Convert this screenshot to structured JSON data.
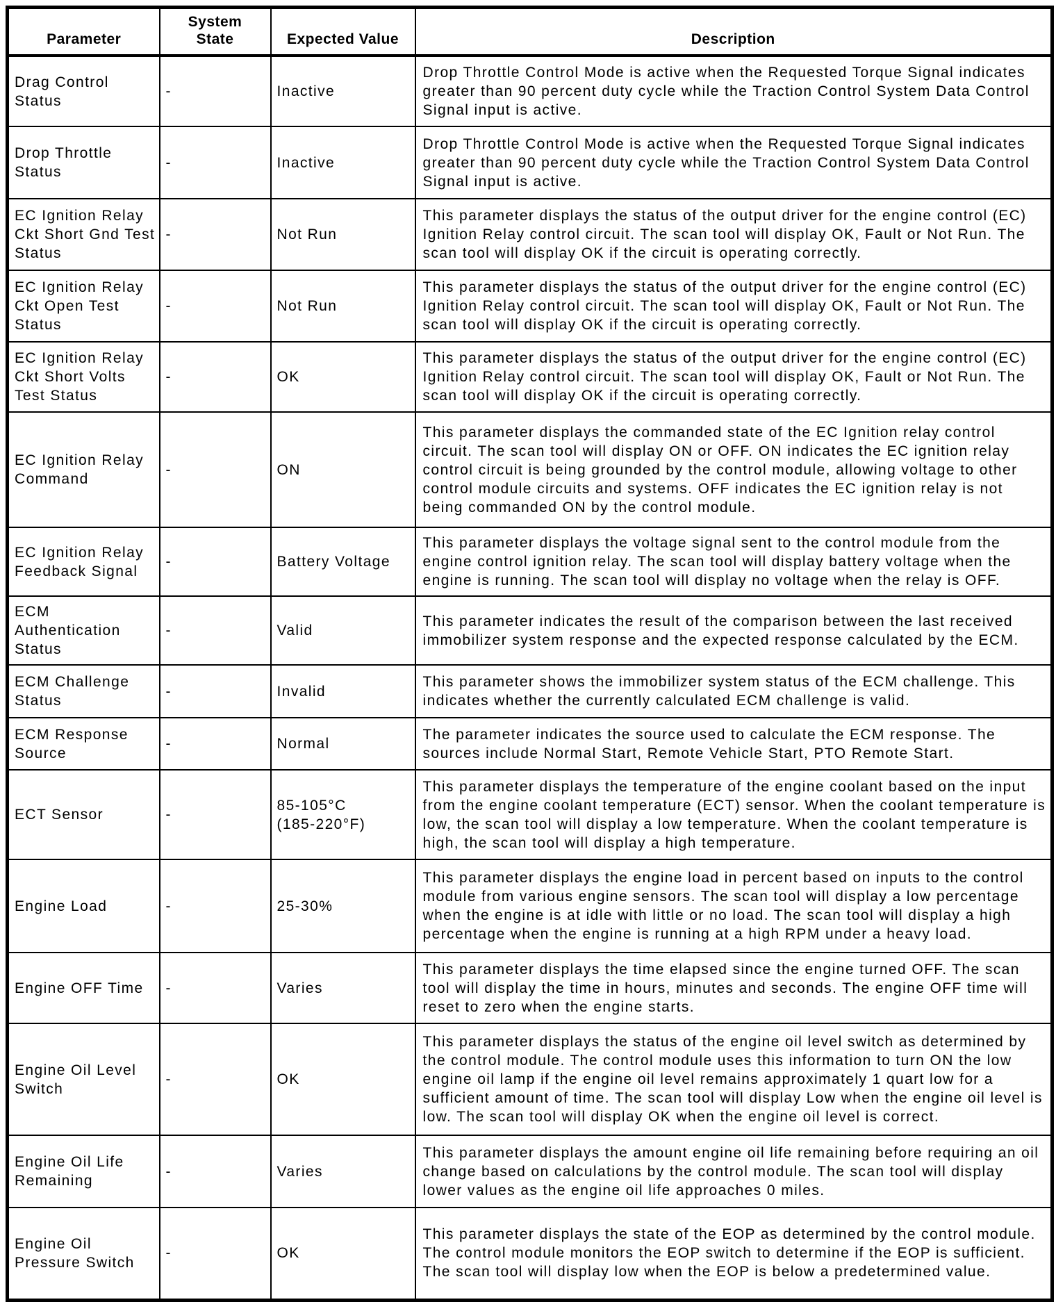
{
  "table": {
    "headers": {
      "parameter": "Parameter",
      "system_state": "System\nState",
      "expected_value": "Expected Value",
      "description": "Description"
    },
    "rows": [
      {
        "parameter": "Drag Control Status",
        "system_state": "-",
        "expected_value": "Inactive",
        "description": "Drop Throttle Control Mode is active when the Requested Torque Signal indicates greater than 90 percent duty cycle while the Traction Control System Data Control Signal input is active."
      },
      {
        "parameter": "Drop Throttle Status",
        "system_state": "-",
        "expected_value": "Inactive",
        "description": "Drop Throttle Control Mode is active when the Requested Torque Signal indicates greater than 90 percent duty cycle while the Traction Control System Data Control Signal input is active."
      },
      {
        "parameter": "EC Ignition Relay Ckt Short Gnd Test Status",
        "system_state": "-",
        "expected_value": "Not Run",
        "description": "This parameter displays the status of the output driver for the engine control (EC) Ignition Relay control circuit. The scan tool will display OK, Fault or Not Run. The scan tool will display OK if the circuit is operating correctly."
      },
      {
        "parameter": "EC Ignition Relay Ckt Open Test Status",
        "system_state": "-",
        "expected_value": "Not Run",
        "description": "This parameter displays the status of the output driver for the engine control (EC) Ignition Relay control circuit. The scan tool will display OK, Fault or Not Run. The scan tool will display OK if the circuit is operating correctly."
      },
      {
        "parameter": "EC Ignition Relay Ckt Short Volts Test Status",
        "system_state": "-",
        "expected_value": "OK",
        "description": "This parameter displays the status of the output driver for the engine control (EC) Ignition Relay control circuit. The scan tool will display OK, Fault or Not Run. The scan tool will display OK if the circuit is operating correctly."
      },
      {
        "parameter": "EC Ignition Relay Command",
        "system_state": "-",
        "expected_value": "ON",
        "description": "This parameter displays the commanded state of the EC Ignition relay control circuit. The scan tool will display ON or OFF. ON indicates the EC ignition relay control circuit is being grounded by the control module, allowing voltage to other control module circuits and systems. OFF indicates the EC ignition relay is not being commanded ON by the control module."
      },
      {
        "parameter": "EC Ignition Relay Feedback Signal",
        "system_state": "-",
        "expected_value": "Battery Voltage",
        "description": "This parameter displays the voltage signal sent to the control module from the engine control ignition relay. The scan tool will display battery voltage when the engine is running. The scan tool will display no voltage when the relay is OFF."
      },
      {
        "parameter": "ECM Authentication Status",
        "system_state": "-",
        "expected_value": "Valid",
        "description": "This parameter indicates the result of the comparison between the last received immobilizer system response and the expected response calculated by the ECM."
      },
      {
        "parameter": "ECM Challenge Status",
        "system_state": "-",
        "expected_value": "Invalid",
        "description": "This parameter shows the immobilizer system status of the ECM challenge. This indicates whether the currently calculated ECM challenge is valid."
      },
      {
        "parameter": "ECM Response Source",
        "system_state": "-",
        "expected_value": "Normal",
        "description": "The parameter indicates the source used to calculate the ECM response. The sources include Normal Start, Remote Vehicle Start, PTO Remote Start."
      },
      {
        "parameter": "ECT Sensor",
        "system_state": "-",
        "expected_value": "85-105°C\n(185-220°F)",
        "description": "This parameter displays the temperature of the engine coolant based on the input from the engine coolant temperature (ECT) sensor. When the coolant temperature is low, the scan tool will display a low temperature. When the coolant temperature is high, the scan tool will display a high temperature."
      },
      {
        "parameter": "Engine Load",
        "system_state": "-",
        "expected_value": "25-30%",
        "description": "This parameter displays the engine load in percent based on inputs to the control module from various engine sensors. The scan tool will display a low percentage when the engine is at idle with little or no load. The scan tool will display a high percentage when the engine is running at a high RPM under a heavy load."
      },
      {
        "parameter": "Engine OFF Time",
        "system_state": "-",
        "expected_value": "Varies",
        "description": "This parameter displays the time elapsed since the engine turned OFF. The scan tool will display the time in hours, minutes and seconds. The engine OFF time will reset to zero when the engine starts."
      },
      {
        "parameter": "Engine Oil Level Switch",
        "system_state": "-",
        "expected_value": "OK",
        "description": "This parameter displays the status of the engine oil level switch as determined by the control module. The control module uses this information to turn ON the low engine oil lamp if the engine oil level remains approximately 1 quart low for a sufficient amount of time. The scan tool will display Low when the engine oil level is low. The scan tool will display OK when the engine oil level is correct."
      },
      {
        "parameter": "Engine Oil Life Remaining",
        "system_state": "-",
        "expected_value": "Varies",
        "description": "This parameter displays the amount engine oil life remaining before requiring an oil change based on calculations by the control module. The scan tool will display lower values as the engine oil life approaches 0 miles."
      },
      {
        "parameter": "Engine Oil Pressure Switch",
        "system_state": "-",
        "expected_value": "OK",
        "description": "This parameter displays the state of the EOP as determined by the control module. The control module monitors the EOP switch to determine if the EOP is sufficient. The scan tool will display low when the EOP is below a predetermined value."
      }
    ]
  }
}
